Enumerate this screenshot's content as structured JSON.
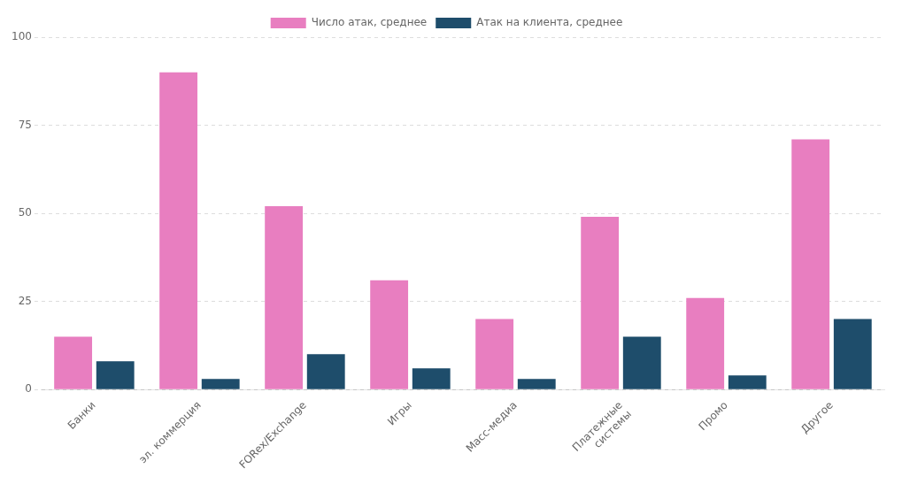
{
  "chart_data": {
    "type": "bar",
    "categories": [
      "Банки",
      "эл. коммерция",
      "FORex/Exchange",
      "Игры",
      "Масс-медиа",
      "Платежные\nсистемы",
      "Промо",
      "Другое"
    ],
    "series": [
      {
        "name": "Число атак, среднее",
        "color": "#e87ec0",
        "values": [
          15,
          90,
          52,
          31,
          20,
          49,
          26,
          71
        ]
      },
      {
        "name": "Атак на клиента, среднее",
        "color": "#1e4d6b",
        "values": [
          8,
          3,
          10,
          6,
          3,
          15,
          4,
          20
        ]
      }
    ],
    "ylim": [
      0,
      100
    ],
    "yticks": [
      0,
      25,
      50,
      75,
      100
    ],
    "grid": true,
    "legend": "top"
  }
}
